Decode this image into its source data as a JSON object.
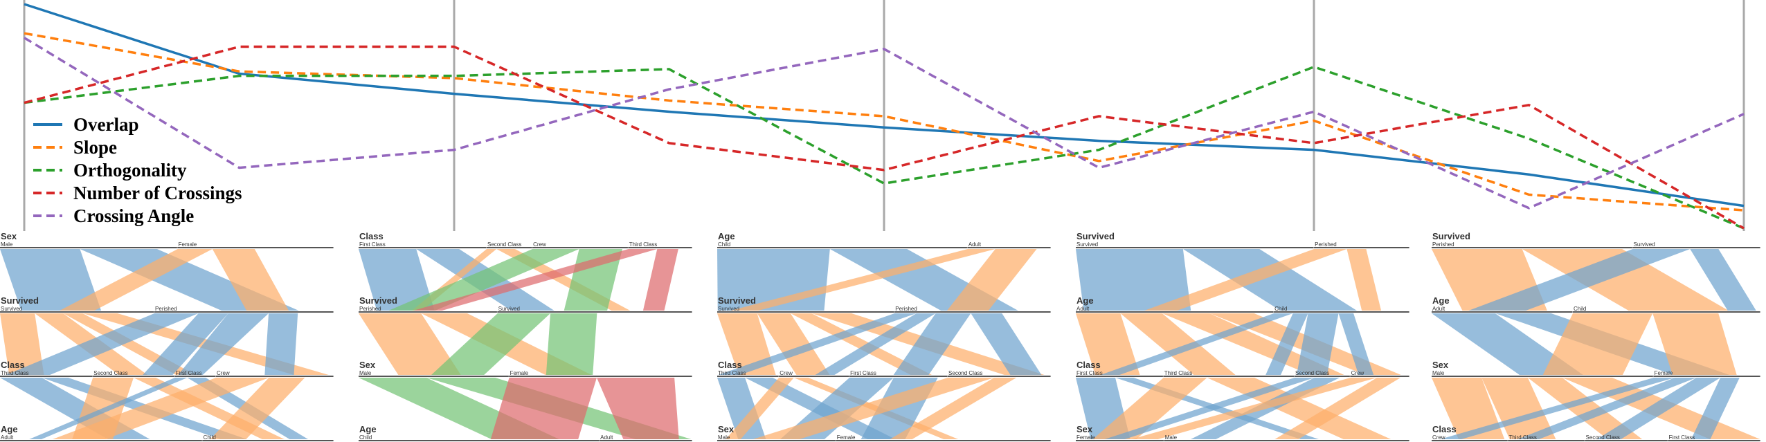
{
  "chart_data": [
    {
      "type": "line",
      "title": "",
      "xlabel": "",
      "ylabel": "",
      "x": [
        1,
        2,
        3,
        4,
        5,
        6,
        7,
        8,
        9
      ],
      "ylim": [
        0,
        1
      ],
      "grid": false,
      "legend_placement": "bottom-left",
      "series": [
        {
          "name": "Overlap",
          "color": "#1f77b4",
          "dash": "solid",
          "values": [
            1.0,
            0.69,
            0.6,
            0.52,
            0.45,
            0.39,
            0.35,
            0.24,
            0.1
          ]
        },
        {
          "name": "Slope",
          "color": "#ff7f0e",
          "dash": "dashed",
          "values": [
            0.87,
            0.7,
            0.67,
            0.57,
            0.5,
            0.3,
            0.48,
            0.15,
            0.08
          ]
        },
        {
          "name": "Orthogonality",
          "color": "#2ca02c",
          "dash": "dashed",
          "values": [
            0.56,
            0.68,
            0.68,
            0.71,
            0.2,
            0.35,
            0.72,
            0.4,
            0.0
          ]
        },
        {
          "name": "Number of Crossings",
          "color": "#d62728",
          "dash": "dashed",
          "values": [
            0.56,
            0.81,
            0.81,
            0.38,
            0.26,
            0.5,
            0.38,
            0.55,
            0.0
          ]
        },
        {
          "name": "Crossing Angle",
          "color": "#9467bd",
          "dash": "dashed",
          "values": [
            0.85,
            0.27,
            0.35,
            0.62,
            0.8,
            0.27,
            0.52,
            0.09,
            0.51
          ]
        }
      ],
      "vertical_axes_at_x": [
        1,
        3,
        5,
        7,
        9
      ]
    },
    {
      "type": "parallel_sets",
      "panels": [
        {
          "color_by": "first_axis",
          "axes": [
            {
              "name": "Sex",
              "categories": [
                "Male",
                "Female"
              ]
            },
            {
              "name": "Survived",
              "categories": [
                "Survived",
                "Perished"
              ]
            },
            {
              "name": "Class",
              "categories": [
                "Third Class",
                "Second Class",
                "First Class",
                "Crew"
              ]
            },
            {
              "name": "Age",
              "categories": [
                "Adult",
                "Child"
              ]
            }
          ]
        },
        {
          "color_by": "first_axis",
          "axes": [
            {
              "name": "Class",
              "categories": [
                "First Class",
                "Second Class",
                "Crew",
                "Third Class"
              ]
            },
            {
              "name": "Survived",
              "categories": [
                "Perished",
                "Survived"
              ]
            },
            {
              "name": "Sex",
              "categories": [
                "Male",
                "Female"
              ]
            },
            {
              "name": "Age",
              "categories": [
                "Child",
                "Adult"
              ]
            }
          ]
        },
        {
          "color_by": "first_axis",
          "axes": [
            {
              "name": "Age",
              "categories": [
                "Child",
                "Adult"
              ]
            },
            {
              "name": "Survived",
              "categories": [
                "Survived",
                "Perished"
              ]
            },
            {
              "name": "Class",
              "categories": [
                "Third Class",
                "Crew",
                "First Class",
                "Second Class"
              ]
            },
            {
              "name": "Sex",
              "categories": [
                "Male",
                "Female"
              ]
            }
          ]
        },
        {
          "color_by": "first_axis",
          "axes": [
            {
              "name": "Survived",
              "categories": [
                "Survived",
                "Perished"
              ]
            },
            {
              "name": "Age",
              "categories": [
                "Adult",
                "Child"
              ]
            },
            {
              "name": "Class",
              "categories": [
                "First Class",
                "Third Class",
                "Second Class",
                "Crew"
              ]
            },
            {
              "name": "Sex",
              "categories": [
                "Female",
                "Male"
              ]
            }
          ]
        },
        {
          "color_by": "first_axis",
          "axes": [
            {
              "name": "Survived",
              "categories": [
                "Perished",
                "Survived"
              ]
            },
            {
              "name": "Age",
              "categories": [
                "Adult",
                "Child"
              ]
            },
            {
              "name": "Sex",
              "categories": [
                "Male",
                "Female"
              ]
            },
            {
              "name": "Class",
              "categories": [
                "Crew",
                "Third Class",
                "Second Class",
                "First Class"
              ]
            }
          ]
        }
      ],
      "category_colors": {
        "Male": "#6fa3cf",
        "Female": "#fdae6b",
        "Child": "#6fa3cf",
        "Adult": "#fdae6b",
        "Survived": "#6fa3cf",
        "Perished": "#fdae6b",
        "First Class": "#6fa3cf",
        "Second Class": "#fdae6b",
        "Crew": "#74c476",
        "Third Class": "#de6b6e"
      }
    }
  ]
}
